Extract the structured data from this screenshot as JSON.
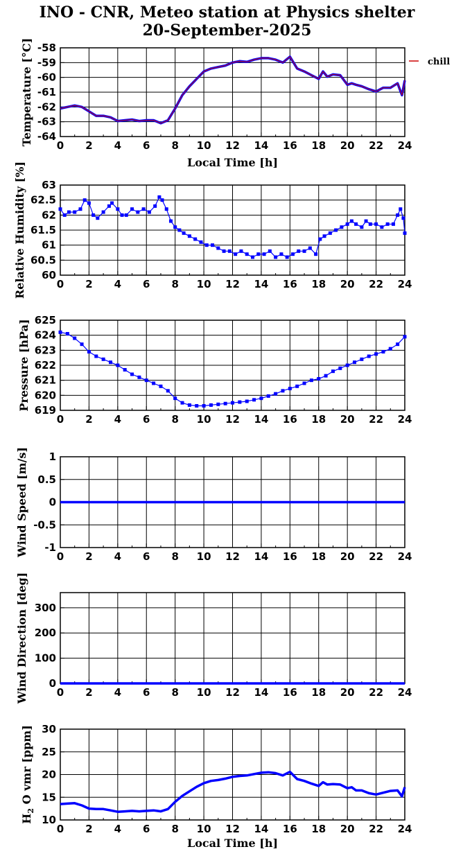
{
  "title": "INO - CNR, Meteo station at Physics shelter",
  "subtitle": "20-September-2025",
  "colors": {
    "series": "#0000ff",
    "chill": "#cc0000",
    "grid": "#000000"
  },
  "chart_data": [
    {
      "type": "line",
      "ylabel": "Temperature [°C]",
      "xlabel": "Local Time [h]",
      "xlim": [
        0,
        24
      ],
      "ylim": [
        -64,
        -58
      ],
      "yticks": [
        -64,
        -63,
        -62,
        -61,
        -60,
        -59,
        -58
      ],
      "xticks": [
        0,
        2,
        4,
        6,
        8,
        10,
        12,
        14,
        16,
        18,
        20,
        22,
        24
      ],
      "grid": true,
      "legend": "right",
      "series": [
        {
          "name": "chill",
          "x": [
            0,
            0.5,
            1,
            1.5,
            2,
            2.5,
            3,
            3.5,
            4,
            4.5,
            5,
            5.5,
            6,
            6.5,
            7,
            7.5,
            8,
            8.5,
            9,
            9.5,
            10,
            10.5,
            11,
            11.5,
            12,
            12.5,
            13,
            13.5,
            14,
            14.5,
            15,
            15.5,
            16,
            16.5,
            17,
            17.5,
            18,
            18.3,
            18.6,
            19,
            19.5,
            20,
            20.3,
            20.6,
            21,
            21.5,
            22,
            22.5,
            23,
            23.5,
            23.8,
            24
          ],
          "y": [
            -62.1,
            -62.0,
            -61.9,
            -62.0,
            -62.3,
            -62.6,
            -62.6,
            -62.7,
            -62.95,
            -62.9,
            -62.85,
            -62.95,
            -62.9,
            -62.9,
            -63.1,
            -62.9,
            -62.1,
            -61.2,
            -60.6,
            -60.1,
            -59.6,
            -59.4,
            -59.3,
            -59.2,
            -59.0,
            -58.9,
            -58.95,
            -58.8,
            -58.7,
            -58.7,
            -58.8,
            -59.0,
            -58.6,
            -59.4,
            -59.6,
            -59.85,
            -60.1,
            -59.6,
            -59.95,
            -59.8,
            -59.85,
            -60.5,
            -60.4,
            -60.5,
            -60.6,
            -60.8,
            -60.95,
            -60.7,
            -60.7,
            -60.4,
            -61.2,
            -60.2
          ]
        }
      ]
    },
    {
      "type": "scatter",
      "ylabel": "Relative Humidity [%]",
      "xlim": [
        0,
        24
      ],
      "ylim": [
        60,
        63
      ],
      "yticks": [
        60,
        60.5,
        61,
        61.5,
        62,
        62.5,
        63
      ],
      "xticks": [
        0,
        2,
        4,
        6,
        8,
        10,
        12,
        14,
        16,
        18,
        20,
        22,
        24
      ],
      "grid": true,
      "series": [
        {
          "x": [
            0,
            0.3,
            0.6,
            1,
            1.4,
            1.7,
            2,
            2.3,
            2.6,
            3,
            3.4,
            3.6,
            4,
            4.3,
            4.6,
            5,
            5.4,
            5.8,
            6.2,
            6.6,
            6.9,
            7.1,
            7.4,
            7.7,
            8,
            8.3,
            8.6,
            9,
            9.4,
            9.8,
            10.2,
            10.6,
            11,
            11.4,
            11.8,
            12.2,
            12.6,
            13,
            13.4,
            13.8,
            14.2,
            14.6,
            15,
            15.4,
            15.8,
            16.2,
            16.6,
            17,
            17.4,
            17.8,
            18.1,
            18.4,
            18.8,
            19.2,
            19.6,
            20,
            20.3,
            20.6,
            21,
            21.3,
            21.6,
            22,
            22.4,
            22.8,
            23.2,
            23.5,
            23.7,
            23.9,
            24
          ],
          "y": [
            62.2,
            62.0,
            62.1,
            62.1,
            62.2,
            62.5,
            62.4,
            62.0,
            61.9,
            62.1,
            62.3,
            62.4,
            62.2,
            62.0,
            62.0,
            62.2,
            62.1,
            62.2,
            62.1,
            62.3,
            62.6,
            62.5,
            62.2,
            61.8,
            61.6,
            61.5,
            61.4,
            61.3,
            61.2,
            61.1,
            61.0,
            61.0,
            60.9,
            60.8,
            60.8,
            60.7,
            60.8,
            60.7,
            60.6,
            60.7,
            60.7,
            60.8,
            60.6,
            60.7,
            60.6,
            60.7,
            60.8,
            60.8,
            60.9,
            60.7,
            61.2,
            61.3,
            61.4,
            61.5,
            61.6,
            61.7,
            61.8,
            61.7,
            61.6,
            61.8,
            61.7,
            61.7,
            61.6,
            61.7,
            61.7,
            62.0,
            62.2,
            61.9,
            61.4
          ]
        }
      ]
    },
    {
      "type": "scatter",
      "ylabel": "Pressure [hPa]",
      "xlim": [
        0,
        24
      ],
      "ylim": [
        619,
        625
      ],
      "yticks": [
        619,
        620,
        621,
        622,
        623,
        624,
        625
      ],
      "xticks": [
        0,
        2,
        4,
        6,
        8,
        10,
        12,
        14,
        16,
        18,
        20,
        22,
        24
      ],
      "grid": true,
      "series": [
        {
          "x": [
            0,
            0.5,
            1,
            1.5,
            2,
            2.5,
            3,
            3.5,
            4,
            4.5,
            5,
            5.5,
            6,
            6.5,
            7,
            7.5,
            8,
            8.5,
            9,
            9.5,
            10,
            10.5,
            11,
            11.5,
            12,
            12.5,
            13,
            13.5,
            14,
            14.5,
            15,
            15.5,
            16,
            16.5,
            17,
            17.5,
            18,
            18.5,
            19,
            19.5,
            20,
            20.5,
            21,
            21.5,
            22,
            22.5,
            23,
            23.5,
            24
          ],
          "y": [
            624.2,
            624.1,
            623.8,
            623.4,
            622.9,
            622.6,
            622.4,
            622.2,
            622.0,
            621.7,
            621.4,
            621.2,
            621.0,
            620.8,
            620.6,
            620.3,
            619.8,
            619.5,
            619.35,
            619.3,
            619.3,
            619.35,
            619.4,
            619.45,
            619.5,
            619.55,
            619.6,
            619.7,
            619.8,
            619.95,
            620.1,
            620.3,
            620.45,
            620.6,
            620.8,
            621.0,
            621.1,
            621.3,
            621.6,
            621.8,
            622.0,
            622.2,
            622.4,
            622.6,
            622.75,
            622.9,
            623.1,
            623.4,
            623.9
          ]
        }
      ]
    },
    {
      "type": "line",
      "ylabel": "Wind Speed [m/s]",
      "xlim": [
        0,
        24
      ],
      "ylim": [
        -1,
        1
      ],
      "yticks": [
        -1,
        -0.5,
        0,
        0.5,
        1
      ],
      "xticks": [
        0,
        2,
        4,
        6,
        8,
        10,
        12,
        14,
        16,
        18,
        20,
        22,
        24
      ],
      "grid": true,
      "series": [
        {
          "x": [
            0,
            24
          ],
          "y": [
            0,
            0
          ]
        }
      ]
    },
    {
      "type": "line",
      "ylabel": "Wind Direction [deg]",
      "xlim": [
        0,
        24
      ],
      "ylim": [
        0,
        360
      ],
      "yticks": [
        0,
        100,
        200,
        300
      ],
      "xticks": [
        0,
        2,
        4,
        6,
        8,
        10,
        12,
        14,
        16,
        18,
        20,
        22,
        24
      ],
      "grid": true,
      "series": [
        {
          "x": [
            0,
            24
          ],
          "y": [
            0,
            0
          ]
        }
      ]
    },
    {
      "type": "line",
      "ylabel": "H2O vmr [ppm]",
      "xlabel": "Local Time [h]",
      "xlim": [
        0,
        24
      ],
      "ylim": [
        10,
        30
      ],
      "yticks": [
        10,
        15,
        20,
        25,
        30
      ],
      "xticks": [
        0,
        2,
        4,
        6,
        8,
        10,
        12,
        14,
        16,
        18,
        20,
        22,
        24
      ],
      "grid": true,
      "series": [
        {
          "x": [
            0,
            0.5,
            1,
            1.5,
            2,
            2.5,
            3,
            3.5,
            4,
            4.5,
            5,
            5.5,
            6,
            6.5,
            7,
            7.5,
            8,
            8.5,
            9,
            9.5,
            10,
            10.5,
            11,
            11.5,
            12,
            12.5,
            13,
            13.5,
            14,
            14.5,
            15,
            15.5,
            16,
            16.5,
            17,
            17.5,
            18,
            18.3,
            18.6,
            19,
            19.5,
            20,
            20.3,
            20.6,
            21,
            21.5,
            22,
            22.5,
            23,
            23.5,
            23.8,
            24
          ],
          "y": [
            13.5,
            13.6,
            13.7,
            13.2,
            12.5,
            12.4,
            12.4,
            12.1,
            11.8,
            11.9,
            12.0,
            11.9,
            12.0,
            12.1,
            11.9,
            12.4,
            14.0,
            15.3,
            16.3,
            17.3,
            18.1,
            18.6,
            18.8,
            19.1,
            19.5,
            19.7,
            19.8,
            20.1,
            20.4,
            20.5,
            20.3,
            19.8,
            20.6,
            19.0,
            18.6,
            18.0,
            17.5,
            18.3,
            17.8,
            17.9,
            17.8,
            17.0,
            17.2,
            16.5,
            16.5,
            15.9,
            15.6,
            16.0,
            16.4,
            16.5,
            15.2,
            17.2
          ]
        }
      ]
    }
  ]
}
